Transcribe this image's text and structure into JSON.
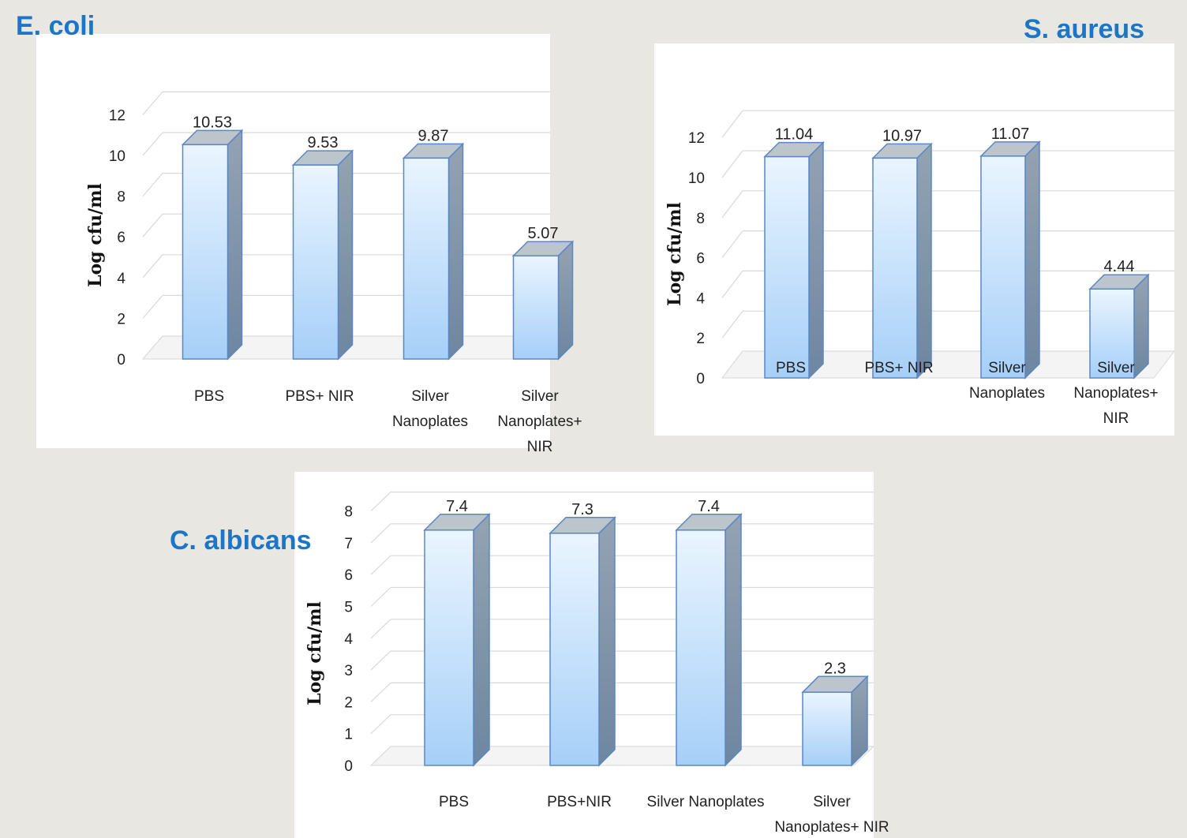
{
  "header": {
    "title": ""
  },
  "colors": {
    "background": "#e8e7e2",
    "label": "#1b76c8",
    "bar_top": "#bcc4cc",
    "bar_side": "#8396aa",
    "bar_front_light": "#eaf5ff",
    "bar_front_dark": "#a6cff8"
  },
  "chart_data": [
    {
      "type": "bar",
      "label": "E. coli",
      "ylabel": "Log cfu/ml",
      "ylim": [
        0,
        12
      ],
      "yticks": [
        0,
        2,
        4,
        6,
        8,
        10,
        12
      ],
      "grid": true,
      "categories": [
        [
          "PBS"
        ],
        [
          "PBS+ NIR"
        ],
        [
          "Silver",
          "Nanoplates"
        ],
        [
          "Silver",
          "Nanoplates+",
          "NIR"
        ]
      ],
      "values": [
        10.53,
        9.53,
        9.87,
        5.07
      ],
      "value_labels": [
        "10.53",
        "9.53",
        "9.87",
        "5.07"
      ]
    },
    {
      "type": "bar",
      "label": "S. aureus",
      "ylabel": "Log cfu/ml",
      "ylim": [
        0,
        12
      ],
      "yticks": [
        0,
        2,
        4,
        6,
        8,
        10,
        12
      ],
      "grid": true,
      "categories": [
        [
          "PBS"
        ],
        [
          "PBS+ NIR"
        ],
        [
          "Silver",
          "Nanoplates"
        ],
        [
          "Silver",
          "Nanoplates+",
          "NIR"
        ]
      ],
      "values": [
        11.04,
        10.97,
        11.07,
        4.44
      ],
      "value_labels": [
        "11.04",
        "10.97",
        "11.07",
        "4.44"
      ]
    },
    {
      "type": "bar",
      "label": "C. albicans",
      "ylabel": "Log cfu/ml",
      "ylim": [
        0,
        8
      ],
      "yticks": [
        0,
        1,
        2,
        3,
        4,
        5,
        6,
        7,
        8
      ],
      "grid": true,
      "categories": [
        [
          "PBS"
        ],
        [
          "PBS+NIR"
        ],
        [
          "Silver Nanoplates"
        ],
        [
          "Silver",
          "Nanoplates+ NIR"
        ]
      ],
      "values": [
        7.4,
        7.3,
        7.4,
        2.3
      ],
      "value_labels": [
        "7.4",
        "7.3",
        "7.4",
        "2.3"
      ]
    }
  ]
}
